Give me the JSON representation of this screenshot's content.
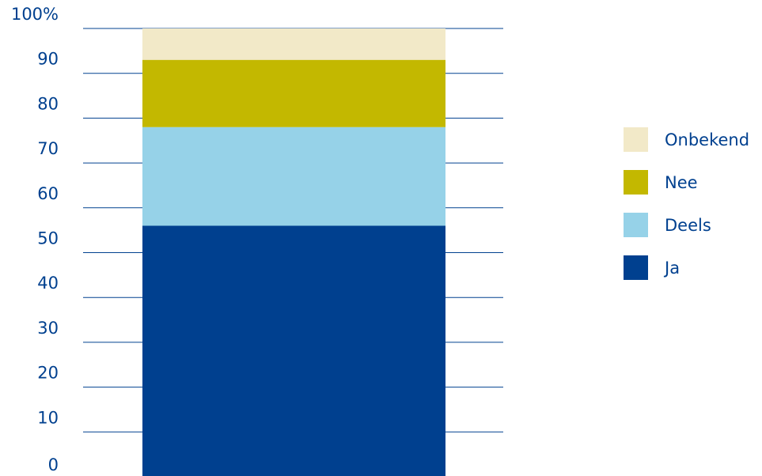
{
  "chart_data": {
    "type": "bar",
    "stacked": true,
    "categories": [
      ""
    ],
    "series": [
      {
        "name": "Ja",
        "values": [
          56.0
        ],
        "color": "#00408F"
      },
      {
        "name": "Deels",
        "values": [
          22.0
        ],
        "color": "#96D2E8"
      },
      {
        "name": "Nee",
        "values": [
          15.0
        ],
        "color": "#C3B800"
      },
      {
        "name": "Onbekend",
        "values": [
          7.0
        ],
        "color": "#F2E9C8"
      }
    ],
    "ylim": [
      0,
      100
    ],
    "y_ticks": [
      0,
      10,
      20,
      30,
      40,
      50,
      60,
      70,
      80,
      90,
      100
    ],
    "y_tick_labels": [
      "0",
      "10",
      "20",
      "30",
      "40",
      "50",
      "60",
      "70",
      "80",
      "90",
      "100%"
    ],
    "grid": true,
    "legend_position": "right",
    "legend_order": [
      "Onbekend",
      "Nee",
      "Deels",
      "Ja"
    ],
    "text_color": "#00408F",
    "grid_color": "#00408F"
  }
}
